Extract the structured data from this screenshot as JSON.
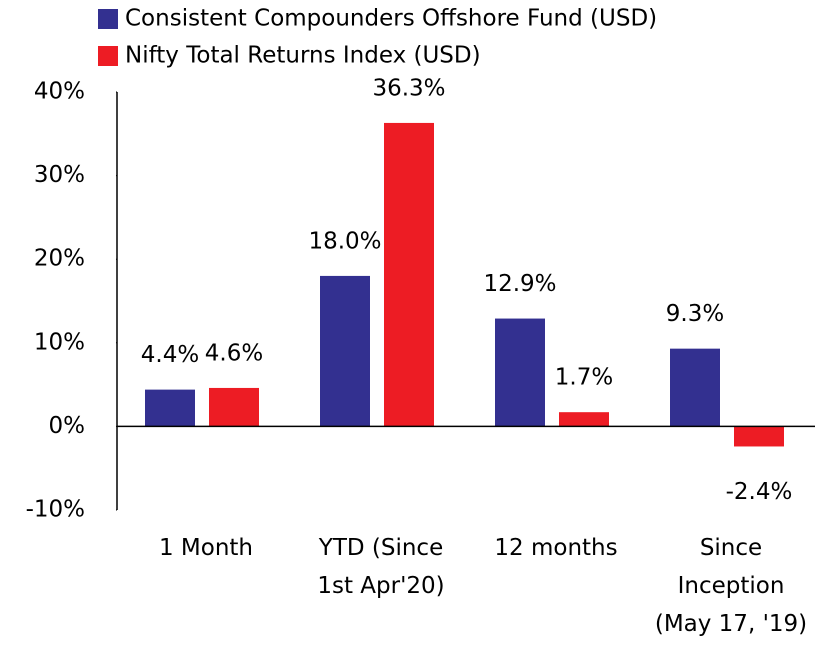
{
  "chart_data": {
    "type": "bar",
    "categories": [
      "1 Month",
      "YTD (Since\n1st Apr'20)",
      "12 months",
      "Since\nInception\n(May 17, '19)"
    ],
    "series": [
      {
        "name": "Consistent Compounders Offshore Fund (USD)",
        "color": "#333090",
        "values": [
          4.4,
          18.0,
          12.9,
          9.3
        ],
        "value_labels": [
          "4.4%",
          "18.0%",
          "12.9%",
          "9.3%"
        ]
      },
      {
        "name": "Nifty Total Returns Index (USD)",
        "color": "#ed1c24",
        "values": [
          4.6,
          36.3,
          1.7,
          -2.4
        ],
        "value_labels": [
          "4.6%",
          "36.3%",
          "1.7%",
          "-2.4%"
        ]
      }
    ],
    "ylim": [
      -10,
      40
    ],
    "yticks": [
      {
        "value": -10,
        "label": "-10%"
      },
      {
        "value": 0,
        "label": "0%"
      },
      {
        "value": 10,
        "label": "10%"
      },
      {
        "value": 20,
        "label": "20%"
      },
      {
        "value": 30,
        "label": "30%"
      },
      {
        "value": 40,
        "label": "40%"
      }
    ],
    "legend": "top"
  }
}
